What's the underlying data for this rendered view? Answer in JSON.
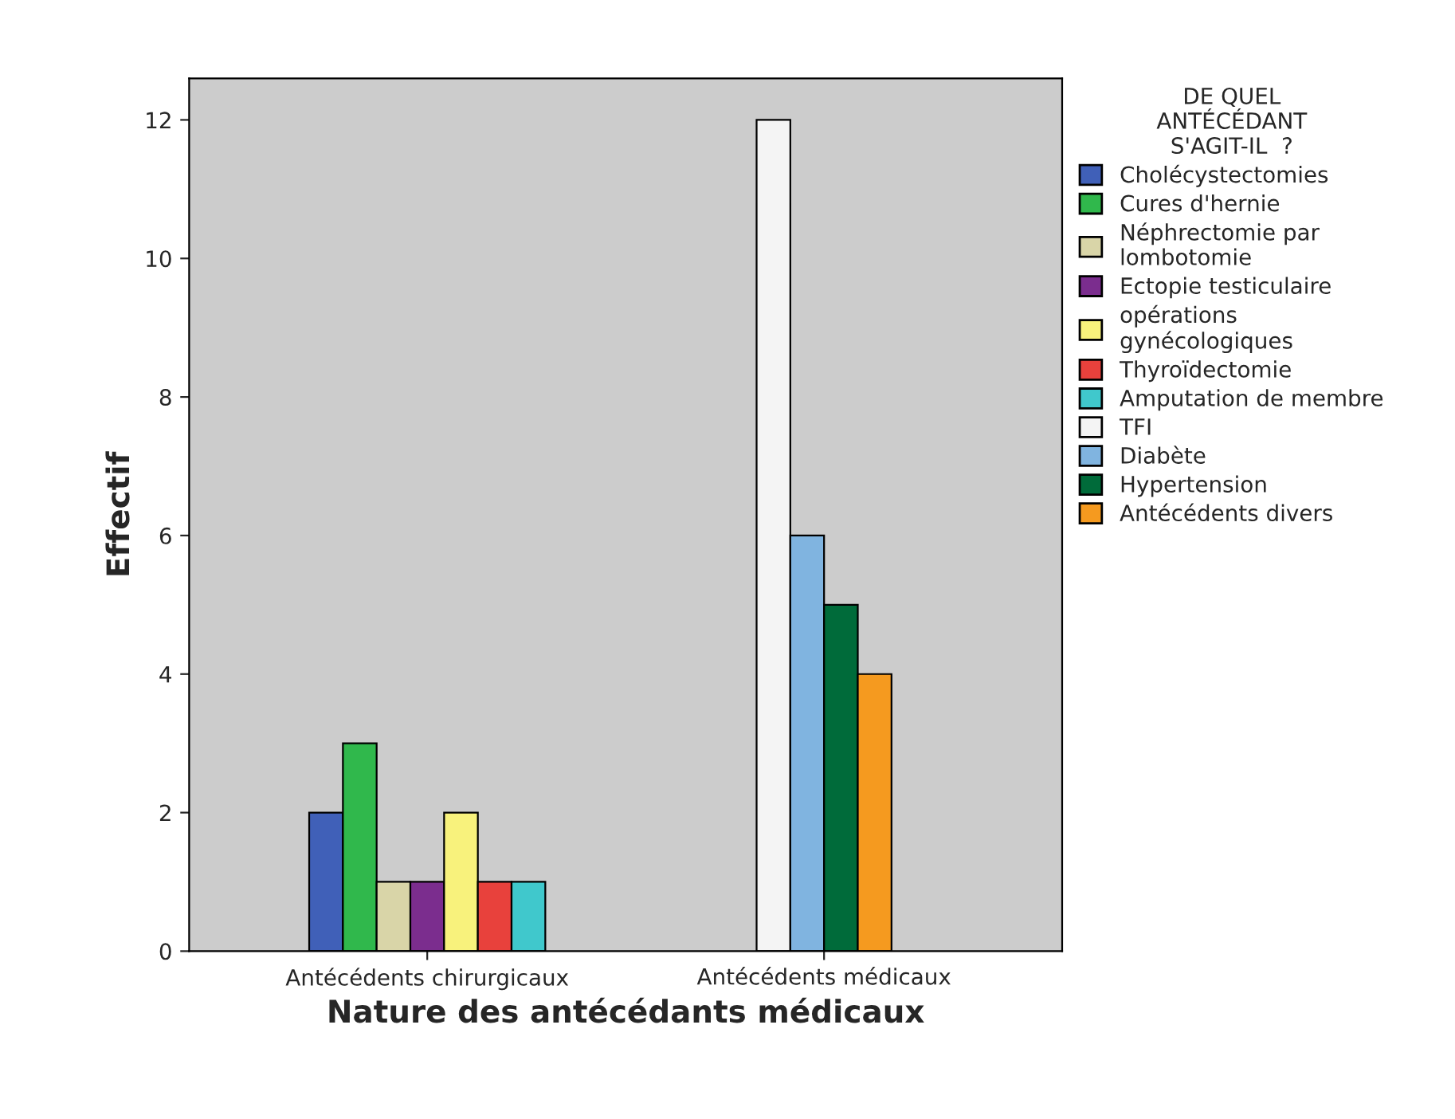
{
  "chart_data": {
    "type": "bar",
    "categories": [
      "Antécédents chirurgicaux",
      "Antécédents médicaux"
    ],
    "xlabel": "Nature des antécédants médicaux",
    "ylabel": "Effectif",
    "legend_title": "DE QUEL\nANTÉCÉDANT\nS'AGIT-IL  ?",
    "legend": "right",
    "ylim": [
      0,
      12.6
    ],
    "yticks": [
      0,
      2,
      4,
      6,
      8,
      10,
      12
    ],
    "series": [
      {
        "name": "Cholécystectomies",
        "color": "#4060b8",
        "values": [
          2,
          null
        ]
      },
      {
        "name": "Cures d'hernie",
        "color": "#30b84c",
        "values": [
          3,
          null
        ]
      },
      {
        "name": "Néphrectomie par\nlombotomie",
        "color": "#d9d5a8",
        "values": [
          1,
          null
        ]
      },
      {
        "name": "Ectopie testiculaire",
        "color": "#7b2d8e",
        "values": [
          1,
          null
        ]
      },
      {
        "name": "opérations\ngynécologiques",
        "color": "#f8f27c",
        "values": [
          2,
          null
        ]
      },
      {
        "name": "Thyroïdectomie",
        "color": "#e8413c",
        "values": [
          1,
          null
        ]
      },
      {
        "name": "Amputation de membre",
        "color": "#40c8cc",
        "values": [
          1,
          null
        ]
      },
      {
        "name": "TFI",
        "color": "#f4f4f4",
        "values": [
          null,
          12
        ]
      },
      {
        "name": "Diabète",
        "color": "#80b4e0",
        "values": [
          null,
          6
        ]
      },
      {
        "name": "Hypertension",
        "color": "#006b3a",
        "values": [
          null,
          5
        ]
      },
      {
        "name": "Antécédents divers",
        "color": "#f59a1f",
        "values": [
          null,
          4
        ]
      }
    ]
  }
}
